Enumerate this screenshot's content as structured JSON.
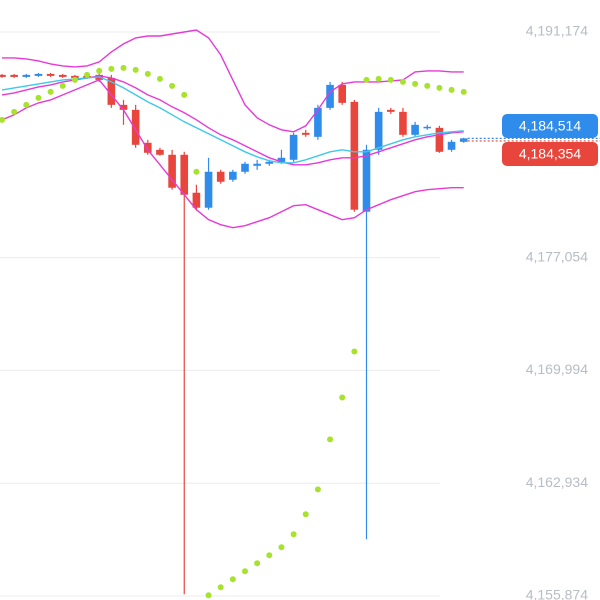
{
  "chart_data": {
    "type": "candlestick",
    "ylim": [
      4155624,
      4193174
    ],
    "yticks": [
      {
        "value": 4191174,
        "label": "4,191,174"
      },
      {
        "value": 4177054,
        "label": "4,177,054"
      },
      {
        "value": 4169994,
        "label": "4,169,994"
      },
      {
        "value": 4162934,
        "label": "4,162,934"
      },
      {
        "value": 4155874,
        "label": "4,155,874"
      }
    ],
    "grid": true,
    "up_color": "#2f8ceb",
    "down_color": "#e8453c",
    "open": [
      4188487,
      4188487,
      4188362,
      4188424,
      4188549,
      4188487,
      4188424,
      4188424,
      4188487,
      4188299,
      4186612,
      4186299,
      4184237,
      4183799,
      4183487,
      4183487,
      4181112,
      4180174,
      4182424,
      4181924,
      4182424,
      4182799,
      4182924,
      4183049,
      4183174,
      4184862,
      4184612,
      4186424,
      4187862,
      4186799,
      4179924,
      4183799,
      4186299,
      4186174,
      4184737,
      4185174,
      4185174,
      4183799,
      4184299
    ],
    "high": [
      4188549,
      4188549,
      4188549,
      4188612,
      4188612,
      4188549,
      4188487,
      4188487,
      4188674,
      4188487,
      4186924,
      4186612,
      4184424,
      4183924,
      4183799,
      4183674,
      4181612,
      4183299,
      4182549,
      4182549,
      4183049,
      4183174,
      4183174,
      4183799,
      4184862,
      4185049,
      4186612,
      4188049,
      4188049,
      4186924,
      4184112,
      4186424,
      4186424,
      4186424,
      4185549,
      4185362,
      4185299,
      4184424,
      4184549
    ],
    "low": [
      4188299,
      4188299,
      4188299,
      4188362,
      4188362,
      4188299,
      4188237,
      4188237,
      4188049,
      4186424,
      4185362,
      4183924,
      4183487,
      4183424,
      4181299,
      4155987,
      4180049,
      4180049,
      4181674,
      4181799,
      4182299,
      4182549,
      4182799,
      4182924,
      4183049,
      4184612,
      4184424,
      4186299,
      4186612,
      4179924,
      4159424,
      4183487,
      4186049,
      4184612,
      4184612,
      4185049,
      4183612,
      4183674,
      4184237
    ],
    "close": [
      4188362,
      4188362,
      4188487,
      4188549,
      4188424,
      4188362,
      4188299,
      4188299,
      4188174,
      4186612,
      4186299,
      4184112,
      4183612,
      4183487,
      4181424,
      4180987,
      4180174,
      4182424,
      4181799,
      4182424,
      4182924,
      4182924,
      4183049,
      4183299,
      4184737,
      4184737,
      4186424,
      4187862,
      4186737,
      4180049,
      4183799,
      4186174,
      4186174,
      4184737,
      4185362,
      4185237,
      4183674,
      4184299,
      4184514
    ],
    "lines": [
      {
        "color": "#e53ad9",
        "values": [
          4189549,
          4189549,
          4189487,
          4189362,
          4189174,
          4189049,
          4188987,
          4189049,
          4189299,
          4189924,
          4190424,
          4190799,
          4190924,
          4190924,
          4191049,
          4191174,
          4191299,
          4190799,
          4189737,
          4188174,
          4186612,
          4185799,
          4185362,
          4185049,
          4184924,
          4185299,
          4186299,
          4187424,
          4187924,
          4188049,
          4188049,
          4188049,
          4188112,
          4188174,
          4188674,
          4188737,
          4188737,
          4188674,
          4188674
        ]
      },
      {
        "color": "#e53ad9",
        "values": [
          4187237,
          4187362,
          4187549,
          4187737,
          4187862,
          4188049,
          4188174,
          4188299,
          4188424,
          4188299,
          4188049,
          4187674,
          4187237,
          4186924,
          4186487,
          4186112,
          4185674,
          4185174,
          4184737,
          4184424,
          4184049,
          4183674,
          4183299,
          4183049,
          4182862,
          4182862,
          4182987,
          4183174,
          4183299,
          4183299,
          4183424,
          4183674,
          4183924,
          4184174,
          4184424,
          4184612,
          4184737,
          4184862,
          4184924
        ]
      },
      {
        "color": "#e53ad9",
        "values": [
          4185674,
          4185987,
          4186424,
          4186737,
          4186924,
          4187237,
          4187549,
          4187862,
          4188174,
          4187237,
          4186299,
          4185049,
          4183799,
          4182862,
          4181924,
          4180987,
          4180049,
          4179424,
          4179112,
          4178924,
          4179049,
          4179299,
          4179549,
          4179924,
          4180299,
          4180362,
          4180049,
          4179737,
          4179424,
          4179549,
          4180049,
          4180362,
          4180674,
          4180924,
          4181174,
          4181299,
          4181362,
          4181424,
          4181424
        ]
      },
      {
        "color": "#3ec8ea",
        "values": [
          4187549,
          4187674,
          4187799,
          4187924,
          4188049,
          4188174,
          4188237,
          4188299,
          4188362,
          4188049,
          4187674,
          4187237,
          4186799,
          4186424,
          4185987,
          4185549,
          4185174,
          4184799,
          4184424,
          4184049,
          4183674,
          4183362,
          4183112,
          4182987,
          4182987,
          4183174,
          4183424,
          4183674,
          4183799,
          4183674,
          4183674,
          4183924,
          4184174,
          4184424,
          4184612,
          4184737,
          4184862,
          4184924,
          4184987
        ]
      }
    ],
    "sar": {
      "color": "#a7e22c",
      "values": [
        4185674,
        4186174,
        4186612,
        4187049,
        4187424,
        4187799,
        4188174,
        4188487,
        4188737,
        4188862,
        4188924,
        4188799,
        4188549,
        4188237,
        4187799,
        4187237,
        4182424,
        4155924,
        4156424,
        4156924,
        4157424,
        4157924,
        4158424,
        4158924,
        4159737,
        4160987,
        4162549,
        4165674,
        4168299,
        4171174,
        4188174,
        4188237,
        4188174,
        4188049,
        4187924,
        4187799,
        4187674,
        4187549,
        4187424
      ]
    },
    "price_tags": [
      {
        "value": 4184514,
        "label": "4,184,514",
        "color": "#2f8ceb"
      },
      {
        "value": 4184354,
        "label": "4,184,354",
        "color": "#e8453c"
      }
    ]
  }
}
